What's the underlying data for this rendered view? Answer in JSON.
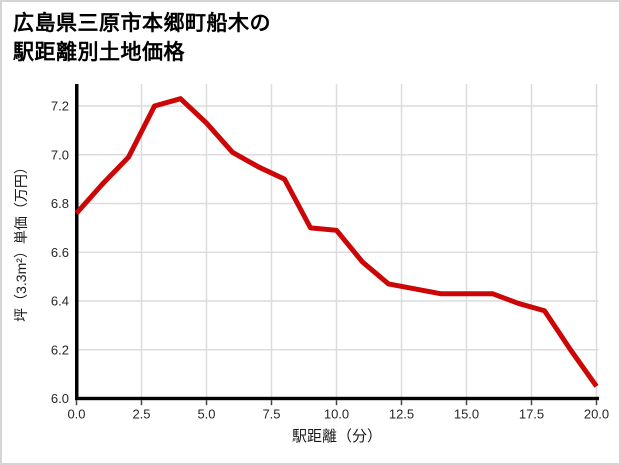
{
  "page": {
    "title_line1": "広島県三原市本郷町船木の",
    "title_line2": "駅距離別土地価格"
  },
  "chart_data": {
    "type": "line",
    "title": "広島県三原市本郷町船木の駅距離別土地価格",
    "xlabel": "駅距離（分）",
    "ylabel": "坪（3.3m²）単価（万円）",
    "x": [
      0,
      1,
      2,
      3,
      4,
      5,
      6,
      7,
      8,
      9,
      10,
      11,
      12,
      13,
      14,
      15,
      16,
      17,
      18,
      19,
      20
    ],
    "y": [
      6.76,
      6.88,
      6.99,
      7.2,
      7.23,
      7.13,
      7.01,
      6.95,
      6.9,
      6.7,
      6.69,
      6.56,
      6.47,
      6.45,
      6.43,
      6.43,
      6.43,
      6.39,
      6.36,
      6.2,
      6.05
    ],
    "xlim": [
      0,
      20
    ],
    "ylim": [
      6.0,
      7.29
    ],
    "x_ticks": [
      0,
      2.5,
      5,
      7.5,
      10,
      12.5,
      15,
      17.5,
      20
    ],
    "x_tick_labels": [
      "0.0",
      "2.5",
      "5.0",
      "7.5",
      "10.0",
      "12.5",
      "15.0",
      "17.5",
      "20.0"
    ],
    "y_ticks": [
      6.0,
      6.2,
      6.4,
      6.6,
      6.8,
      7.0,
      7.2
    ],
    "y_tick_labels": [
      "6.0",
      "6.2",
      "6.4",
      "6.6",
      "6.8",
      "7.0",
      "7.2"
    ],
    "grid": true,
    "legend_position": "none",
    "line_color": "#cc0606",
    "grid_color": "#dcdcdc",
    "spine_color": "#000000",
    "tick_color": "#444444",
    "tick_label_color": "#262626"
  }
}
